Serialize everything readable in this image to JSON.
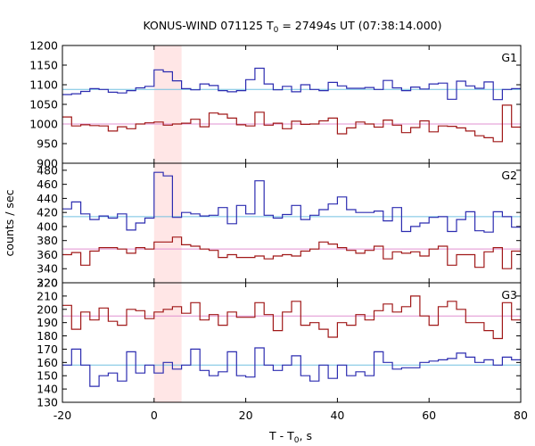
{
  "chart_data": {
    "type": "line",
    "title_main": "KONUS-WIND 071125 T",
    "title_sub": "0",
    "title_rest": " = 27494s UT (07:38:14.000)",
    "ylabel": "counts / sec",
    "xlabel_main": "T - T",
    "xlabel_sub": "0",
    "xlabel_rest": ", s",
    "xlim": [
      -20,
      80
    ],
    "xticks": [
      -20,
      0,
      20,
      40,
      60,
      80
    ],
    "highlight": {
      "x_start": 0,
      "x_end": 6,
      "color": "#ffe6e6"
    },
    "bin_edges": [
      -20,
      -18,
      -16,
      -14,
      -12,
      -10,
      -8,
      -6,
      -4,
      -2,
      0,
      2,
      4,
      6,
      8,
      10,
      12,
      14,
      16,
      18,
      20,
      22,
      24,
      26,
      28,
      30,
      32,
      34,
      36,
      38,
      40,
      42,
      44,
      46,
      48,
      50,
      52,
      54,
      56,
      58,
      60,
      62,
      64,
      66,
      68,
      70,
      72,
      74,
      76,
      78,
      80
    ],
    "panels": [
      {
        "label": "G1",
        "ylim": [
          900,
          1200
        ],
        "yticks": [
          900,
          950,
          1000,
          1050,
          1100,
          1150,
          1200
        ],
        "series": [
          {
            "color": "#2c2cb0",
            "background": 1088,
            "values": [
              1075,
              1077,
              1083,
              1090,
              1088,
              1081,
              1079,
              1085,
              1092,
              1096,
              1138,
              1133,
              1110,
              1090,
              1087,
              1102,
              1098,
              1085,
              1082,
              1085,
              1113,
              1142,
              1102,
              1087,
              1096,
              1082,
              1100,
              1088,
              1085,
              1106,
              1097,
              1091,
              1091,
              1093,
              1088,
              1111,
              1092,
              1085,
              1094,
              1089,
              1102,
              1104,
              1063,
              1109,
              1097,
              1091,
              1107,
              1062,
              1088,
              1090
            ],
            "bg_color": "#70c0e0"
          },
          {
            "color": "#a01818",
            "background": 1000,
            "values": [
              1018,
              995,
              998,
              996,
              995,
              982,
              993,
              988,
              1000,
              1003,
              1005,
              997,
              1000,
              1002,
              1012,
              993,
              1028,
              1025,
              1015,
              998,
              995,
              1030,
              997,
              1002,
              988,
              1007,
              999,
              1000,
              1008,
              1015,
              975,
              990,
              1005,
              1000,
              992,
              1010,
              997,
              978,
              991,
              1008,
              980,
              995,
              994,
              990,
              982,
              970,
              965,
              955,
              1048,
              992
            ],
            "bg_color": "#e090d0"
          }
        ]
      },
      {
        "label": "G2",
        "ylim": [
          320,
          490
        ],
        "yticks": [
          320,
          340,
          360,
          380,
          400,
          420,
          440,
          460,
          480
        ],
        "series": [
          {
            "color": "#2c2cb0",
            "background": 414,
            "values": [
              425,
              435,
              418,
              410,
              415,
              412,
              418,
              395,
              405,
              412,
              477,
              472,
              413,
              420,
              418,
              415,
              416,
              427,
              404,
              430,
              418,
              465,
              416,
              412,
              417,
              430,
              410,
              416,
              424,
              432,
              442,
              424,
              420,
              420,
              422,
              408,
              427,
              393,
              400,
              405,
              413,
              414,
              393,
              410,
              421,
              394,
              392,
              421,
              414,
              399
            ],
            "bg_color": "#70c0e0"
          },
          {
            "color": "#a01818",
            "background": 368,
            "values": [
              360,
              363,
              345,
              365,
              370,
              370,
              368,
              362,
              370,
              368,
              378,
              378,
              385,
              374,
              372,
              368,
              366,
              356,
              360,
              356,
              356,
              358,
              354,
              358,
              360,
              358,
              365,
              368,
              378,
              375,
              370,
              366,
              362,
              366,
              372,
              354,
              364,
              362,
              364,
              358,
              368,
              372,
              345,
              360,
              360,
              342,
              364,
              370,
              340,
              365
            ],
            "bg_color": "#e090d0"
          }
        ]
      },
      {
        "label": "G3",
        "ylim": [
          130,
          220
        ],
        "yticks": [
          130,
          140,
          150,
          160,
          170,
          180,
          190,
          200,
          210,
          220
        ],
        "series": [
          {
            "color": "#a01818",
            "background": 195,
            "values": [
              203,
              185,
              198,
              192,
              201,
              191,
              188,
              200,
              199,
              193,
              198,
              200,
              202,
              197,
              205,
              192,
              196,
              188,
              198,
              194,
              194,
              205,
              196,
              184,
              198,
              206,
              188,
              190,
              185,
              179,
              190,
              188,
              196,
              192,
              199,
              204,
              198,
              202,
              210,
              195,
              188,
              202,
              206,
              200,
              190,
              190,
              184,
              178,
              205,
              192
            ],
            "bg_color": "#e090d0"
          },
          {
            "color": "#2c2cb0",
            "background": 158,
            "values": [
              158,
              170,
              158,
              142,
              150,
              152,
              146,
              168,
              152,
              158,
              152,
              160,
              155,
              158,
              170,
              154,
              150,
              153,
              168,
              150,
              149,
              171,
              158,
              154,
              158,
              165,
              150,
              146,
              158,
              148,
              158,
              150,
              153,
              150,
              168,
              160,
              155,
              156,
              156,
              160,
              161,
              162,
              163,
              167,
              164,
              160,
              162,
              158,
              164,
              162
            ],
            "bg_color": "#70c0e0"
          }
        ]
      }
    ]
  }
}
